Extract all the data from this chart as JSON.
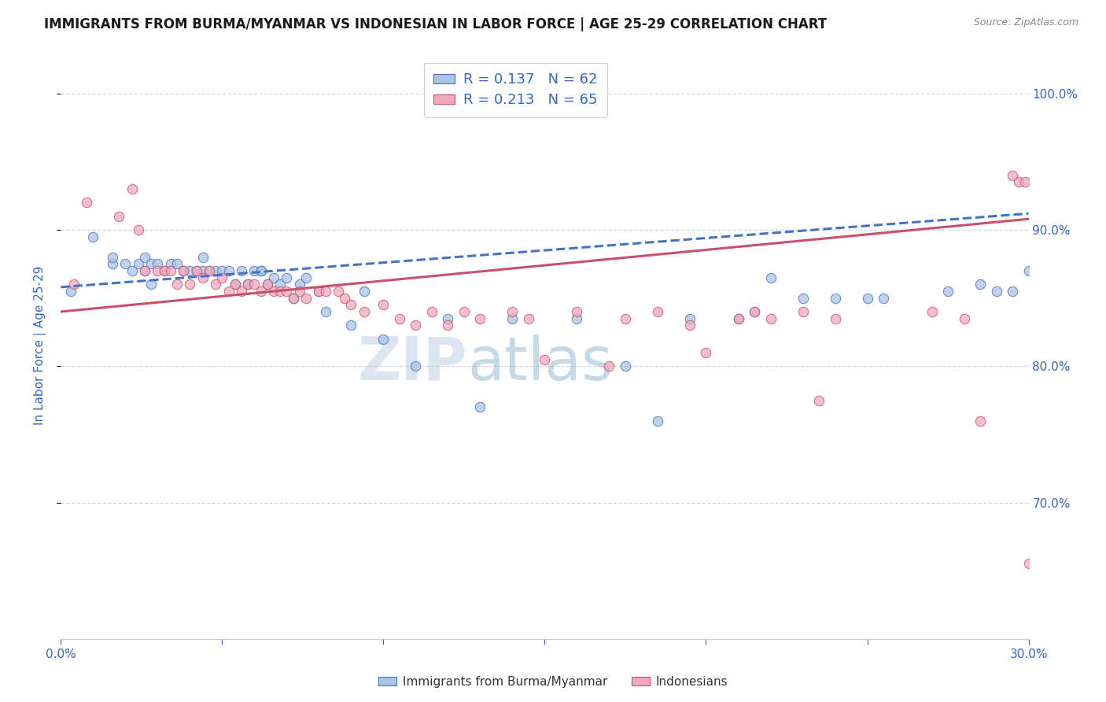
{
  "title": "IMMIGRANTS FROM BURMA/MYANMAR VS INDONESIAN IN LABOR FORCE | AGE 25-29 CORRELATION CHART",
  "source": "Source: ZipAtlas.com",
  "ylabel": "In Labor Force | Age 25-29",
  "xlim": [
    0.0,
    0.3
  ],
  "ylim": [
    0.6,
    1.03
  ],
  "xticks": [
    0.0,
    0.05,
    0.1,
    0.15,
    0.2,
    0.25,
    0.3
  ],
  "xticklabels": [
    "0.0%",
    "",
    "",
    "",
    "",
    "",
    "30.0%"
  ],
  "yticks_right": [
    0.7,
    0.8,
    0.9,
    1.0
  ],
  "ytick_right_labels": [
    "70.0%",
    "80.0%",
    "90.0%",
    "100.0%"
  ],
  "legend_R1": "0.137",
  "legend_N1": "62",
  "legend_R2": "0.213",
  "legend_N2": "65",
  "legend_label1": "Immigrants from Burma/Myanmar",
  "legend_label2": "Indonesians",
  "blue_color": "#aac4e2",
  "pink_color": "#f2a8bc",
  "trend_blue_color": "#4472c4",
  "trend_pink_color": "#c9506a",
  "accent_color": "#3366cc",
  "watermark_zip": "ZIP",
  "watermark_atlas": "atlas",
  "blue_scatter_x": [
    0.003,
    0.01,
    0.016,
    0.016,
    0.02,
    0.022,
    0.024,
    0.026,
    0.026,
    0.028,
    0.028,
    0.03,
    0.032,
    0.034,
    0.036,
    0.038,
    0.04,
    0.042,
    0.044,
    0.044,
    0.046,
    0.048,
    0.05,
    0.052,
    0.054,
    0.056,
    0.058,
    0.06,
    0.062,
    0.062,
    0.064,
    0.066,
    0.068,
    0.07,
    0.072,
    0.074,
    0.076,
    0.08,
    0.082,
    0.09,
    0.094,
    0.1,
    0.11,
    0.12,
    0.13,
    0.14,
    0.16,
    0.175,
    0.185,
    0.195,
    0.21,
    0.215,
    0.22,
    0.23,
    0.24,
    0.25,
    0.255,
    0.275,
    0.285,
    0.29,
    0.295,
    0.3
  ],
  "blue_scatter_y": [
    0.855,
    0.895,
    0.875,
    0.88,
    0.875,
    0.87,
    0.875,
    0.88,
    0.87,
    0.875,
    0.86,
    0.875,
    0.87,
    0.875,
    0.875,
    0.87,
    0.87,
    0.87,
    0.87,
    0.88,
    0.87,
    0.87,
    0.87,
    0.87,
    0.86,
    0.87,
    0.86,
    0.87,
    0.87,
    0.87,
    0.86,
    0.865,
    0.86,
    0.865,
    0.85,
    0.86,
    0.865,
    0.855,
    0.84,
    0.83,
    0.855,
    0.82,
    0.8,
    0.835,
    0.77,
    0.835,
    0.835,
    0.8,
    0.76,
    0.835,
    0.835,
    0.84,
    0.865,
    0.85,
    0.85,
    0.85,
    0.85,
    0.855,
    0.86,
    0.855,
    0.855,
    0.87
  ],
  "pink_scatter_x": [
    0.004,
    0.008,
    0.018,
    0.022,
    0.024,
    0.026,
    0.03,
    0.032,
    0.034,
    0.036,
    0.038,
    0.04,
    0.042,
    0.044,
    0.046,
    0.048,
    0.05,
    0.052,
    0.054,
    0.056,
    0.058,
    0.06,
    0.062,
    0.064,
    0.066,
    0.068,
    0.07,
    0.072,
    0.074,
    0.076,
    0.08,
    0.082,
    0.086,
    0.088,
    0.09,
    0.094,
    0.1,
    0.105,
    0.11,
    0.115,
    0.12,
    0.125,
    0.13,
    0.14,
    0.145,
    0.15,
    0.16,
    0.17,
    0.175,
    0.185,
    0.195,
    0.2,
    0.21,
    0.215,
    0.22,
    0.23,
    0.235,
    0.24,
    0.27,
    0.28,
    0.285,
    0.295,
    0.297,
    0.299,
    0.3
  ],
  "pink_scatter_y": [
    0.86,
    0.92,
    0.91,
    0.93,
    0.9,
    0.87,
    0.87,
    0.87,
    0.87,
    0.86,
    0.87,
    0.86,
    0.87,
    0.865,
    0.87,
    0.86,
    0.865,
    0.855,
    0.86,
    0.855,
    0.86,
    0.86,
    0.855,
    0.86,
    0.855,
    0.855,
    0.855,
    0.85,
    0.855,
    0.85,
    0.855,
    0.855,
    0.855,
    0.85,
    0.845,
    0.84,
    0.845,
    0.835,
    0.83,
    0.84,
    0.83,
    0.84,
    0.835,
    0.84,
    0.835,
    0.805,
    0.84,
    0.8,
    0.835,
    0.84,
    0.83,
    0.81,
    0.835,
    0.84,
    0.835,
    0.84,
    0.775,
    0.835,
    0.84,
    0.835,
    0.76,
    0.94,
    0.935,
    0.935,
    0.655
  ],
  "trend_blue_x0": 0.0,
  "trend_blue_y0": 0.858,
  "trend_blue_x1": 0.3,
  "trend_blue_y1": 0.912,
  "trend_pink_x0": 0.0,
  "trend_pink_y0": 0.84,
  "trend_pink_x1": 0.3,
  "trend_pink_y1": 0.908,
  "background_color": "#ffffff",
  "grid_color": "#d0d8e8",
  "title_fontsize": 12,
  "axis_label_color": "#3366cc",
  "tick_color": "#3366cc"
}
